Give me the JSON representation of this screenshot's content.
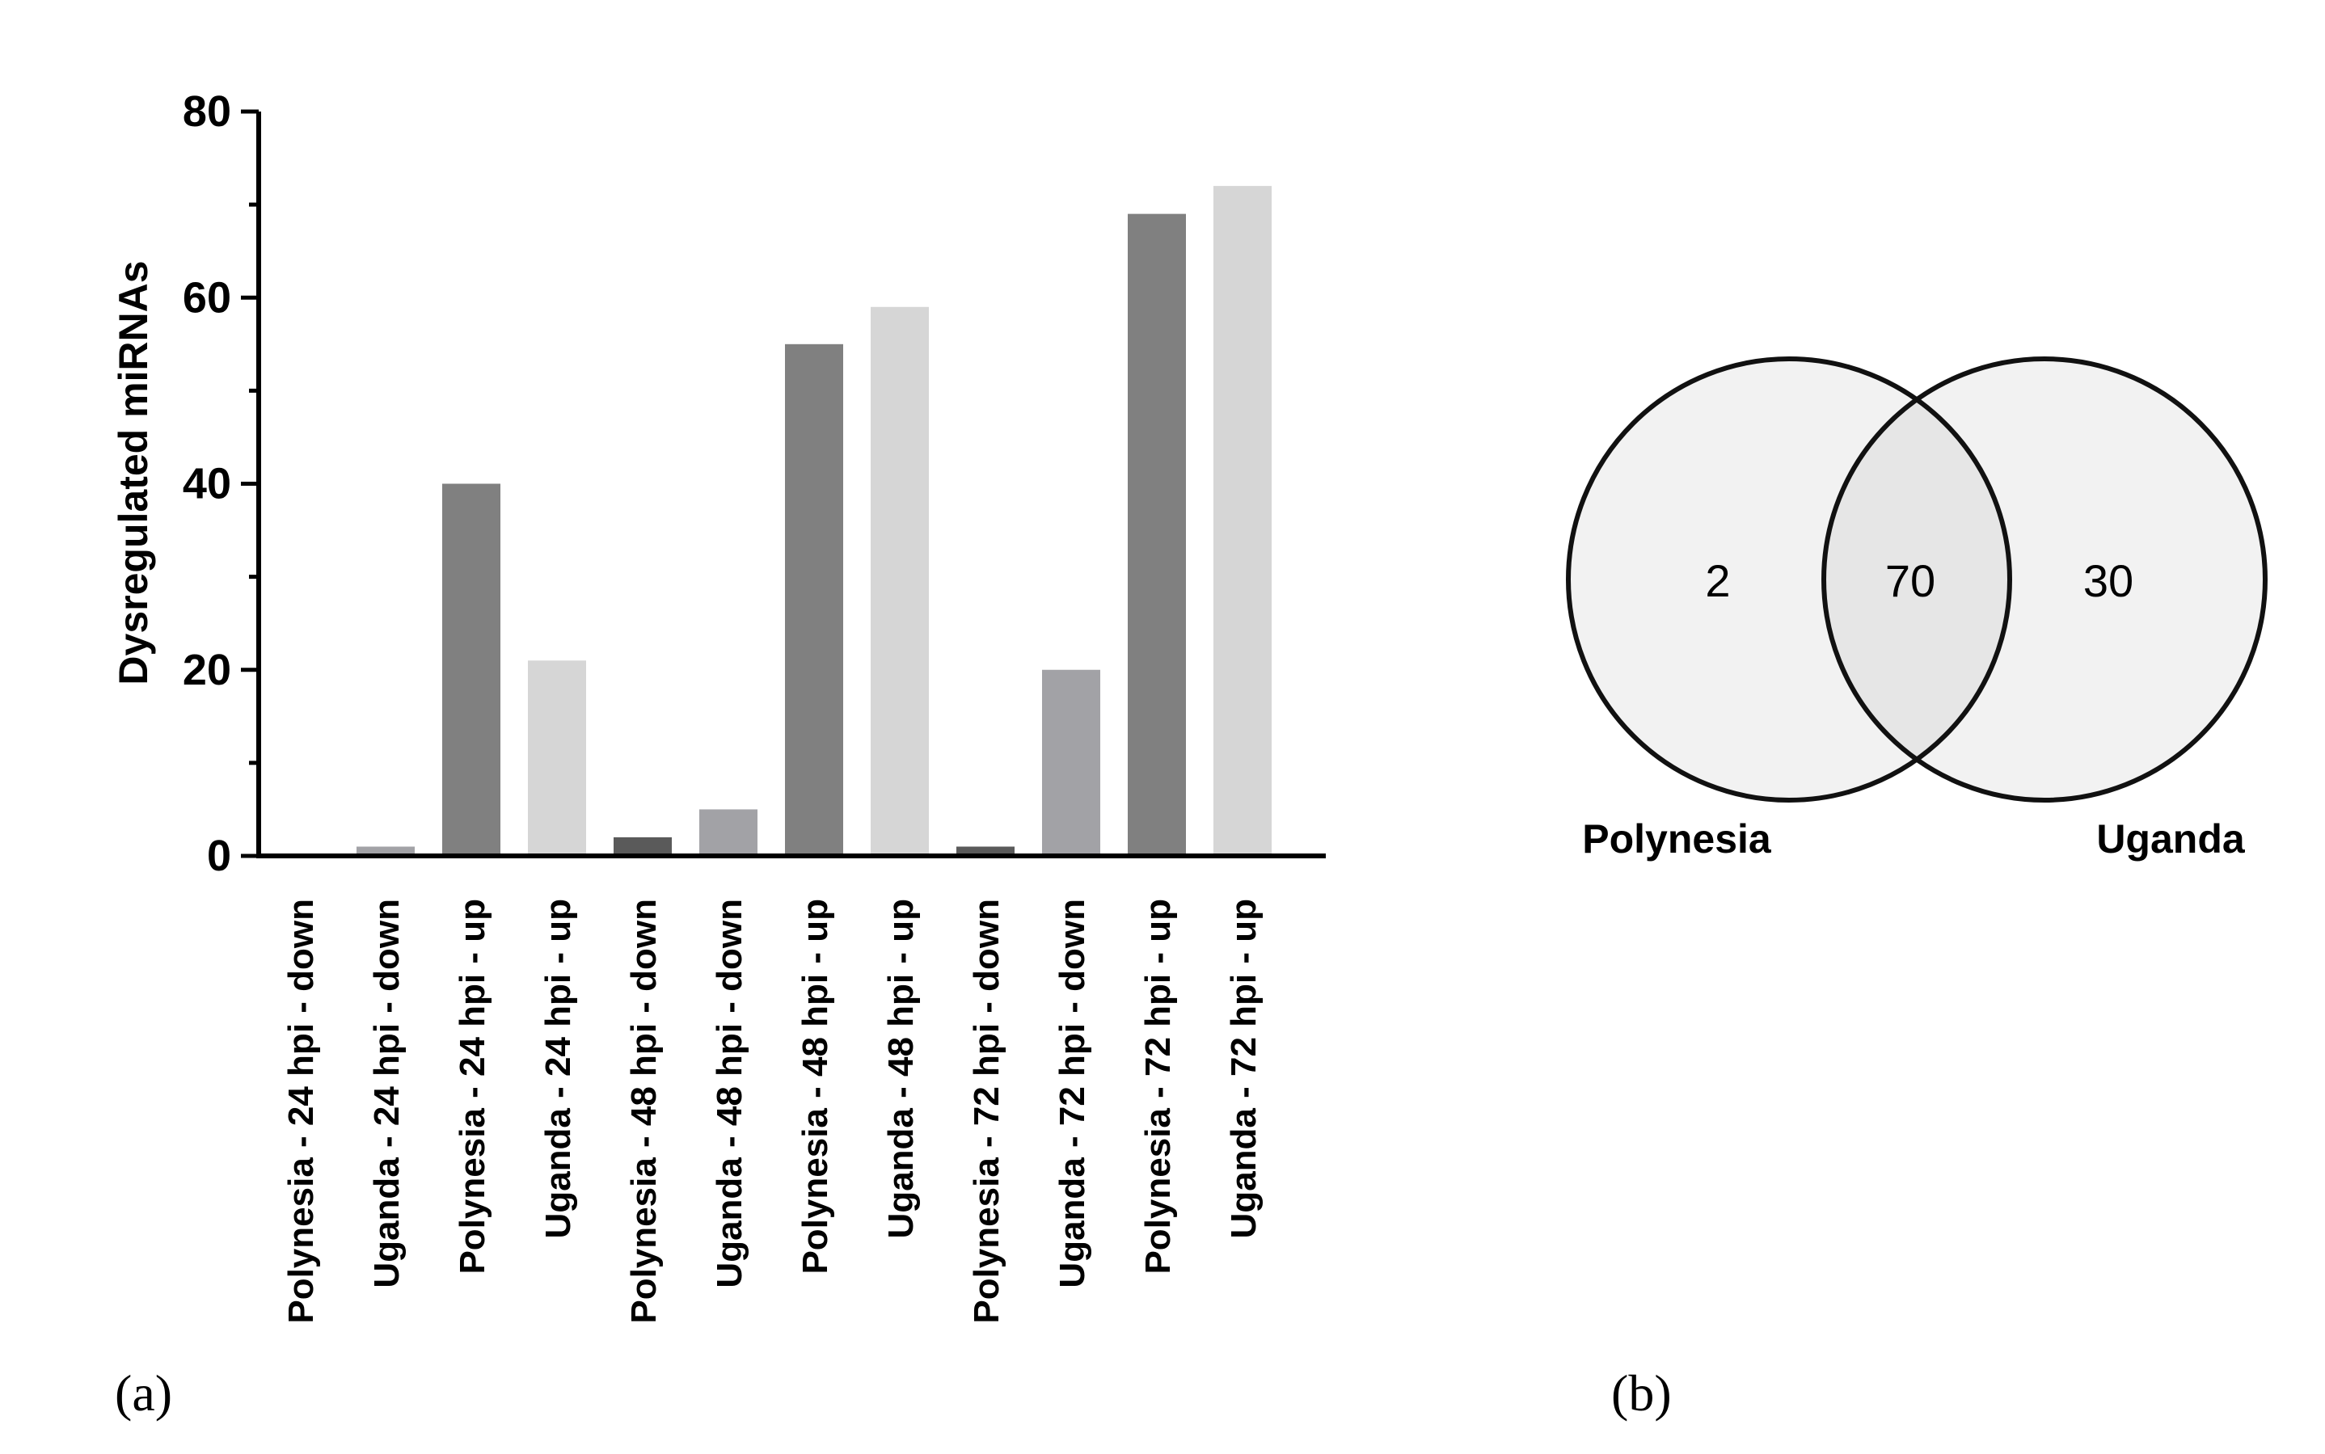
{
  "panels": {
    "a_label": "(a)",
    "b_label": "(b)"
  },
  "chart_data": [
    {
      "type": "bar",
      "ylabel": "Dysregulated miRNAs",
      "ylim": [
        0,
        80
      ],
      "yticks": [
        "0",
        "20",
        "40",
        "60",
        "80"
      ],
      "categories": [
        "Polynesia - 24 hpi - down",
        "Uganda - 24 hpi - down",
        "Polynesia - 24 hpi - up",
        "Uganda - 24 hpi - up",
        "Polynesia - 48 hpi - down",
        "Uganda - 48 hpi - down",
        "Polynesia - 48 hpi - up",
        "Uganda - 48 hpi - up",
        "Polynesia - 72 hpi - down",
        "Uganda - 72 hpi - down",
        "Polynesia - 72 hpi - up",
        "Uganda - 72 hpi - up"
      ],
      "values": [
        0,
        1,
        40,
        21,
        2,
        5,
        55,
        59,
        1,
        20,
        69,
        72
      ],
      "colors": [
        "#5a5a5a",
        "#a2a2a6",
        "#808080",
        "#d6d6d6",
        "#5a5a5a",
        "#a2a2a6",
        "#808080",
        "#d6d6d6",
        "#5a5a5a",
        "#a2a2a6",
        "#808080",
        "#d6d6d6"
      ],
      "grid": false
    },
    {
      "type": "venn",
      "sets": [
        {
          "label": "Polynesia",
          "only": "2"
        },
        {
          "label": "Uganda",
          "only": "30"
        }
      ],
      "overlap": "70",
      "colors": {
        "fill": "#f2f2f2",
        "overlap": "#e6e6e6",
        "stroke": "#111111"
      }
    }
  ]
}
